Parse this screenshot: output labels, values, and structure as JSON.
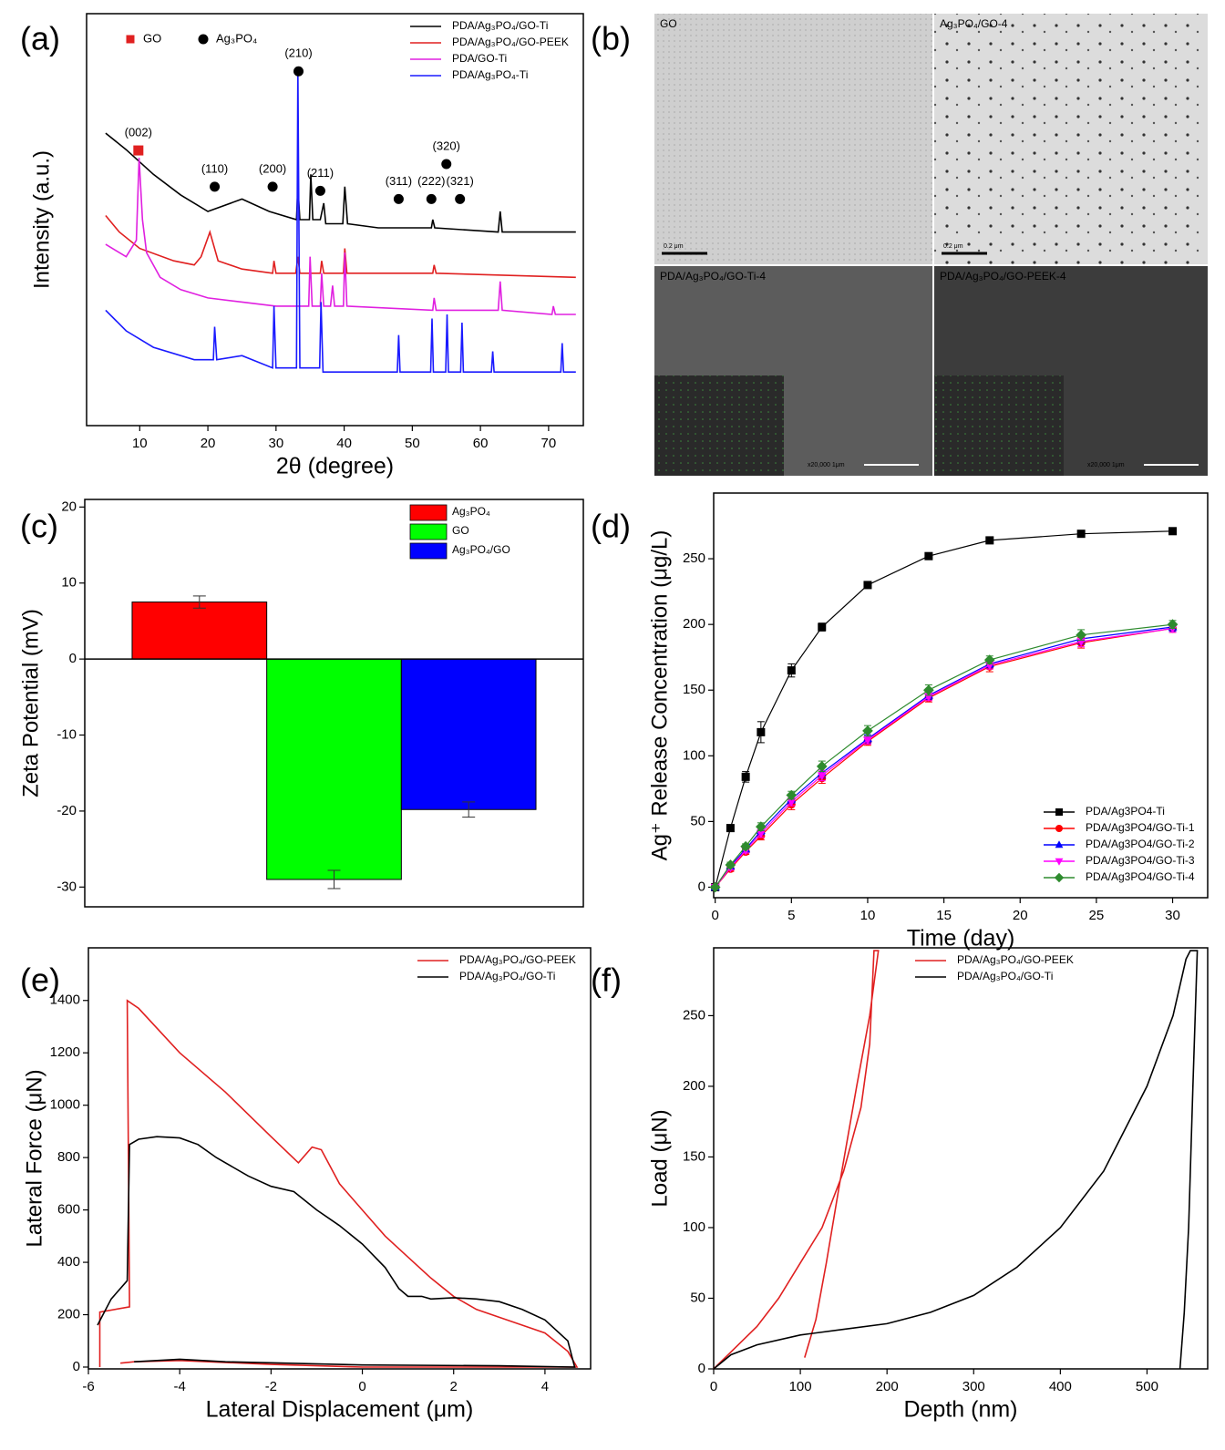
{
  "chart_data": [
    {
      "type": "line",
      "panel_label": "(a)",
      "x_label": "2θ (degree)",
      "y_label": "Intensity (a.u.)",
      "xlim": [
        2.2,
        75.1
      ],
      "ylim": [
        0,
        100
      ],
      "xticks": [
        10,
        20,
        30,
        40,
        50,
        60,
        70
      ],
      "legend": "upper right",
      "marker_legend": [
        {
          "label": "GO",
          "marker": "square",
          "color": "#e02020"
        },
        {
          "label": "Ag₃PO₄",
          "marker": "circle",
          "color": "#000000"
        }
      ],
      "annotations": [
        {
          "text": "(002)",
          "x": 9.8,
          "y": 66.8,
          "marker": "square",
          "color": "#e02020"
        },
        {
          "text": "(110)",
          "x": 21,
          "y": 58,
          "marker": "circle",
          "color": "#000000"
        },
        {
          "text": "(200)",
          "x": 29.5,
          "y": 58,
          "marker": "circle",
          "color": "#000000"
        },
        {
          "text": "(210)",
          "x": 33.3,
          "y": 86,
          "marker": "circle",
          "color": "#000000"
        },
        {
          "text": "(211)",
          "x": 36.5,
          "y": 57,
          "marker": "circle",
          "color": "#000000"
        },
        {
          "text": "(311)",
          "x": 48,
          "y": 55,
          "marker": "circle",
          "color": "#000000"
        },
        {
          "text": "(222)",
          "x": 52.8,
          "y": 55,
          "marker": "circle",
          "color": "#000000"
        },
        {
          "text": "(321)",
          "x": 57,
          "y": 55,
          "marker": "circle",
          "color": "#000000"
        },
        {
          "text": "(320)",
          "x": 55,
          "y": 63.5,
          "marker": "circle",
          "color": "#000000"
        }
      ],
      "series": [
        {
          "name": "PDA/Ag₃PO₄/GO-Ti",
          "color": "#000000",
          "x": [
            5,
            8,
            12,
            16,
            20,
            25,
            29,
            33,
            33.2,
            33.5,
            34.9,
            35.1,
            35.4,
            36.5,
            37,
            37.3,
            39.8,
            40.1,
            40.5,
            45,
            52.8,
            53,
            53.3,
            62.6,
            62.9,
            63.2,
            74
          ],
          "values": [
            71,
            67,
            61,
            56,
            52,
            55,
            52,
            50,
            58,
            50,
            50,
            61,
            50,
            50,
            54,
            49,
            49,
            58,
            49,
            48,
            48,
            50,
            48,
            47,
            52,
            47,
            47
          ]
        },
        {
          "name": "PDA/Ag₃PO₄/GO-PEEK",
          "color": "#e02020",
          "x": [
            5,
            7,
            10,
            15,
            18,
            19,
            20.3,
            21.5,
            25,
            29.5,
            29.7,
            30,
            32.9,
            33.2,
            33.5,
            36.5,
            36.7,
            37,
            39.9,
            40.1,
            40.4,
            53,
            53.2,
            53.5,
            74
          ],
          "values": [
            51,
            47,
            43,
            40,
            39,
            41,
            47,
            40,
            38,
            37,
            40,
            37,
            37,
            41,
            37,
            37,
            40,
            37,
            37,
            43,
            37,
            37,
            39,
            37,
            36
          ]
        },
        {
          "name": "PDA/GO-Ti",
          "color": "#e020e0",
          "x": [
            5,
            8,
            9.5,
            9.9,
            10.4,
            11,
            13,
            16,
            20,
            25,
            30,
            34.8,
            35,
            35.3,
            36.5,
            36.7,
            37,
            38,
            38.3,
            38.6,
            39.9,
            40.1,
            40.4,
            53,
            53.2,
            53.5,
            62.6,
            62.9,
            63.2,
            70.5,
            70.7,
            71,
            74
          ],
          "values": [
            44,
            41,
            45,
            65,
            50,
            42,
            36,
            33,
            31,
            30,
            29,
            29,
            41,
            29,
            29,
            37,
            29,
            29,
            34,
            29,
            29,
            42,
            29,
            28,
            31,
            28,
            28,
            35,
            28,
            27,
            29,
            27,
            27
          ]
        },
        {
          "name": "PDA/Ag₃PO₄-Ti",
          "color": "#1a1aff",
          "x": [
            5,
            8,
            12,
            18,
            20.8,
            21,
            21.3,
            25,
            29.5,
            29.7,
            30,
            33,
            33.2,
            33.5,
            36.4,
            36.6,
            36.9,
            42.5,
            47.8,
            48,
            48.2,
            52.7,
            52.9,
            53.1,
            54.9,
            55.1,
            55.3,
            57.1,
            57.3,
            57.5,
            61.6,
            61.8,
            62,
            71.8,
            72,
            72.2,
            74
          ],
          "values": [
            28,
            23,
            19,
            16,
            16,
            24,
            16,
            17,
            14,
            29,
            14,
            14,
            87,
            14,
            14,
            30,
            13,
            13,
            13,
            22,
            13,
            13,
            26,
            13,
            13,
            27,
            13,
            13,
            25,
            13,
            13,
            18,
            13,
            13,
            20,
            13,
            13
          ]
        }
      ]
    },
    {
      "type": "image",
      "panel_label": "(b)",
      "images": [
        {
          "label": "GO",
          "scale": "0.2 μm"
        },
        {
          "label": "Ag₃PO₄/GO-4",
          "scale": "0.2 μm"
        },
        {
          "label": "PDA/Ag₃PO₄/GO-Ti-4",
          "scale": "x20,000  1μm"
        },
        {
          "label": "PDA/Ag₃PO₄/GO-PEEK-4",
          "scale": "x20,000  1μm"
        }
      ]
    },
    {
      "type": "bar",
      "panel_label": "(c)",
      "y_label": "Zeta Potential (mV)",
      "ylim": [
        -32.6,
        21
      ],
      "yticks": [
        -30,
        -20,
        -10,
        0,
        10,
        20
      ],
      "legend": "upper right",
      "series": [
        {
          "name": "Ag₃PO₄",
          "color": "#ff0000",
          "values": [
            7.5
          ],
          "errors": [
            0.8
          ]
        },
        {
          "name": "GO",
          "color": "#00ff00",
          "values": [
            -29
          ],
          "errors": [
            1.2
          ]
        },
        {
          "name": "Ag₃PO₄/GO",
          "color": "#0000ff",
          "values": [
            -19.8
          ],
          "errors": [
            1
          ]
        }
      ]
    },
    {
      "type": "line",
      "panel_label": "(d)",
      "x_label": "Time (day)",
      "y_label": "Ag⁺ Release Concentration (μg/L)",
      "xlim": [
        -0.1,
        32.3
      ],
      "ylim": [
        -8,
        300
      ],
      "xticks": [
        0,
        5,
        10,
        15,
        20,
        25,
        30
      ],
      "yticks": [
        0,
        50,
        100,
        150,
        200,
        250
      ],
      "legend": "lower right",
      "x": [
        0,
        1,
        2,
        3,
        5,
        7,
        10,
        14,
        18,
        24,
        30
      ],
      "series": [
        {
          "name": "PDA/Ag3PO4-Ti",
          "color": "#000000",
          "marker": "square",
          "values": [
            0,
            45,
            84,
            118,
            165,
            198,
            230,
            252,
            264,
            269,
            271
          ],
          "errors": [
            0,
            1,
            4,
            8,
            5,
            3,
            2,
            2,
            2,
            2,
            2
          ]
        },
        {
          "name": "PDA/Ag3PO4/GO-Ti-1",
          "color": "#ff0000",
          "marker": "circle",
          "values": [
            0,
            14,
            27,
            39,
            63,
            83,
            111,
            144,
            168,
            186,
            197
          ],
          "errors": [
            0,
            2,
            2,
            3,
            4,
            4,
            3,
            3,
            4,
            4,
            3
          ]
        },
        {
          "name": "PDA/Ag3PO4/GO-Ti-2",
          "color": "#0000ff",
          "marker": "triangle-up",
          "values": [
            0,
            16,
            29,
            43,
            67,
            87,
            113,
            146,
            170,
            189,
            198
          ],
          "errors": [
            0,
            2,
            2,
            3,
            3,
            4,
            3,
            3,
            3,
            4,
            3
          ]
        },
        {
          "name": "PDA/Ag3PO4/GO-Ti-3",
          "color": "#ff00ff",
          "marker": "triangle-down",
          "values": [
            0,
            15,
            28,
            41,
            65,
            85,
            112,
            145,
            169,
            187,
            197
          ],
          "errors": [
            0,
            2,
            2,
            3,
            3,
            4,
            3,
            3,
            3,
            4,
            3
          ]
        },
        {
          "name": "PDA/Ag3PO4/GO-Ti-4",
          "color": "#2e8b2e",
          "marker": "diamond",
          "values": [
            0,
            17,
            31,
            46,
            70,
            92,
            119,
            150,
            173,
            192,
            200
          ],
          "errors": [
            0,
            2,
            2,
            3,
            3,
            4,
            4,
            4,
            3,
            4,
            3
          ]
        }
      ]
    },
    {
      "type": "line",
      "panel_label": "(e)",
      "x_label": "Lateral Displacement (μm)",
      "y_label": "Lateral Force (μN)",
      "xlim": [
        -6,
        5
      ],
      "ylim": [
        -7,
        1601
      ],
      "xticks": [
        -6,
        -4,
        -2,
        0,
        2,
        4
      ],
      "yticks": [
        0,
        200,
        400,
        600,
        800,
        1000,
        1200,
        1400
      ],
      "legend": "upper right",
      "series": [
        {
          "name": "PDA/Ag₃PO₄/GO-PEEK",
          "color": "#e02020",
          "x": [
            -5.75,
            -5.75,
            -5.1,
            -5.15,
            -4.9,
            -4,
            -3,
            -2,
            -1.4,
            -1.1,
            -0.9,
            -0.5,
            0,
            0.5,
            1,
            1.5,
            2,
            2.5,
            3,
            3.5,
            4,
            4.5,
            4.7,
            4,
            0,
            -2,
            -4,
            -5,
            -5.3
          ],
          "values": [
            0,
            210,
            230,
            1400,
            1370,
            1200,
            1050,
            880,
            780,
            840,
            830,
            700,
            600,
            500,
            420,
            340,
            270,
            220,
            190,
            160,
            130,
            60,
            0,
            0,
            0,
            10,
            25,
            20,
            15
          ]
        },
        {
          "name": "PDA/Ag₃PO₄/GO-Ti",
          "color": "#000000",
          "x": [
            -5.8,
            -5.5,
            -5.15,
            -5.1,
            -4.9,
            -4.5,
            -4,
            -3.6,
            -3.2,
            -2.5,
            -2,
            -1.5,
            -1,
            -0.5,
            0,
            0.5,
            0.8,
            1,
            1.3,
            1.5,
            2,
            2.5,
            3,
            3.5,
            4,
            4.5,
            4.65,
            3,
            0,
            -3,
            -4,
            -5
          ],
          "values": [
            160,
            260,
            330,
            850,
            870,
            880,
            875,
            850,
            800,
            730,
            690,
            670,
            600,
            540,
            470,
            380,
            300,
            270,
            270,
            260,
            265,
            260,
            250,
            220,
            180,
            100,
            0,
            5,
            8,
            20,
            30,
            20
          ]
        }
      ]
    },
    {
      "type": "line",
      "panel_label": "(f)",
      "x_label": "Depth (nm)",
      "y_label": "Load (μN)",
      "xlim": [
        0,
        570
      ],
      "ylim": [
        0,
        298
      ],
      "xticks": [
        0,
        100,
        200,
        300,
        400,
        500
      ],
      "yticks": [
        0,
        50,
        100,
        150,
        200,
        250
      ],
      "legend": "upper center",
      "series": [
        {
          "name": "PDA/Ag₃PO₄/GO-PEEK",
          "color": "#e02020",
          "x": [
            0,
            25,
            50,
            75,
            100,
            125,
            150,
            170,
            180,
            185,
            190,
            180,
            165,
            145,
            130,
            118,
            105
          ],
          "values": [
            0,
            15,
            30,
            50,
            75,
            100,
            140,
            185,
            230,
            296,
            296,
            250,
            200,
            130,
            75,
            35,
            8
          ]
        },
        {
          "name": "PDA/Ag₃PO₄/GO-Ti",
          "color": "#000000",
          "x": [
            0,
            20,
            50,
            100,
            150,
            200,
            250,
            300,
            350,
            400,
            450,
            500,
            530,
            545,
            550,
            558,
            553,
            548,
            543,
            538
          ],
          "values": [
            0,
            10,
            17,
            24,
            28,
            32,
            40,
            52,
            72,
            100,
            140,
            200,
            250,
            290,
            296,
            296,
            200,
            100,
            40,
            0
          ]
        }
      ]
    }
  ]
}
